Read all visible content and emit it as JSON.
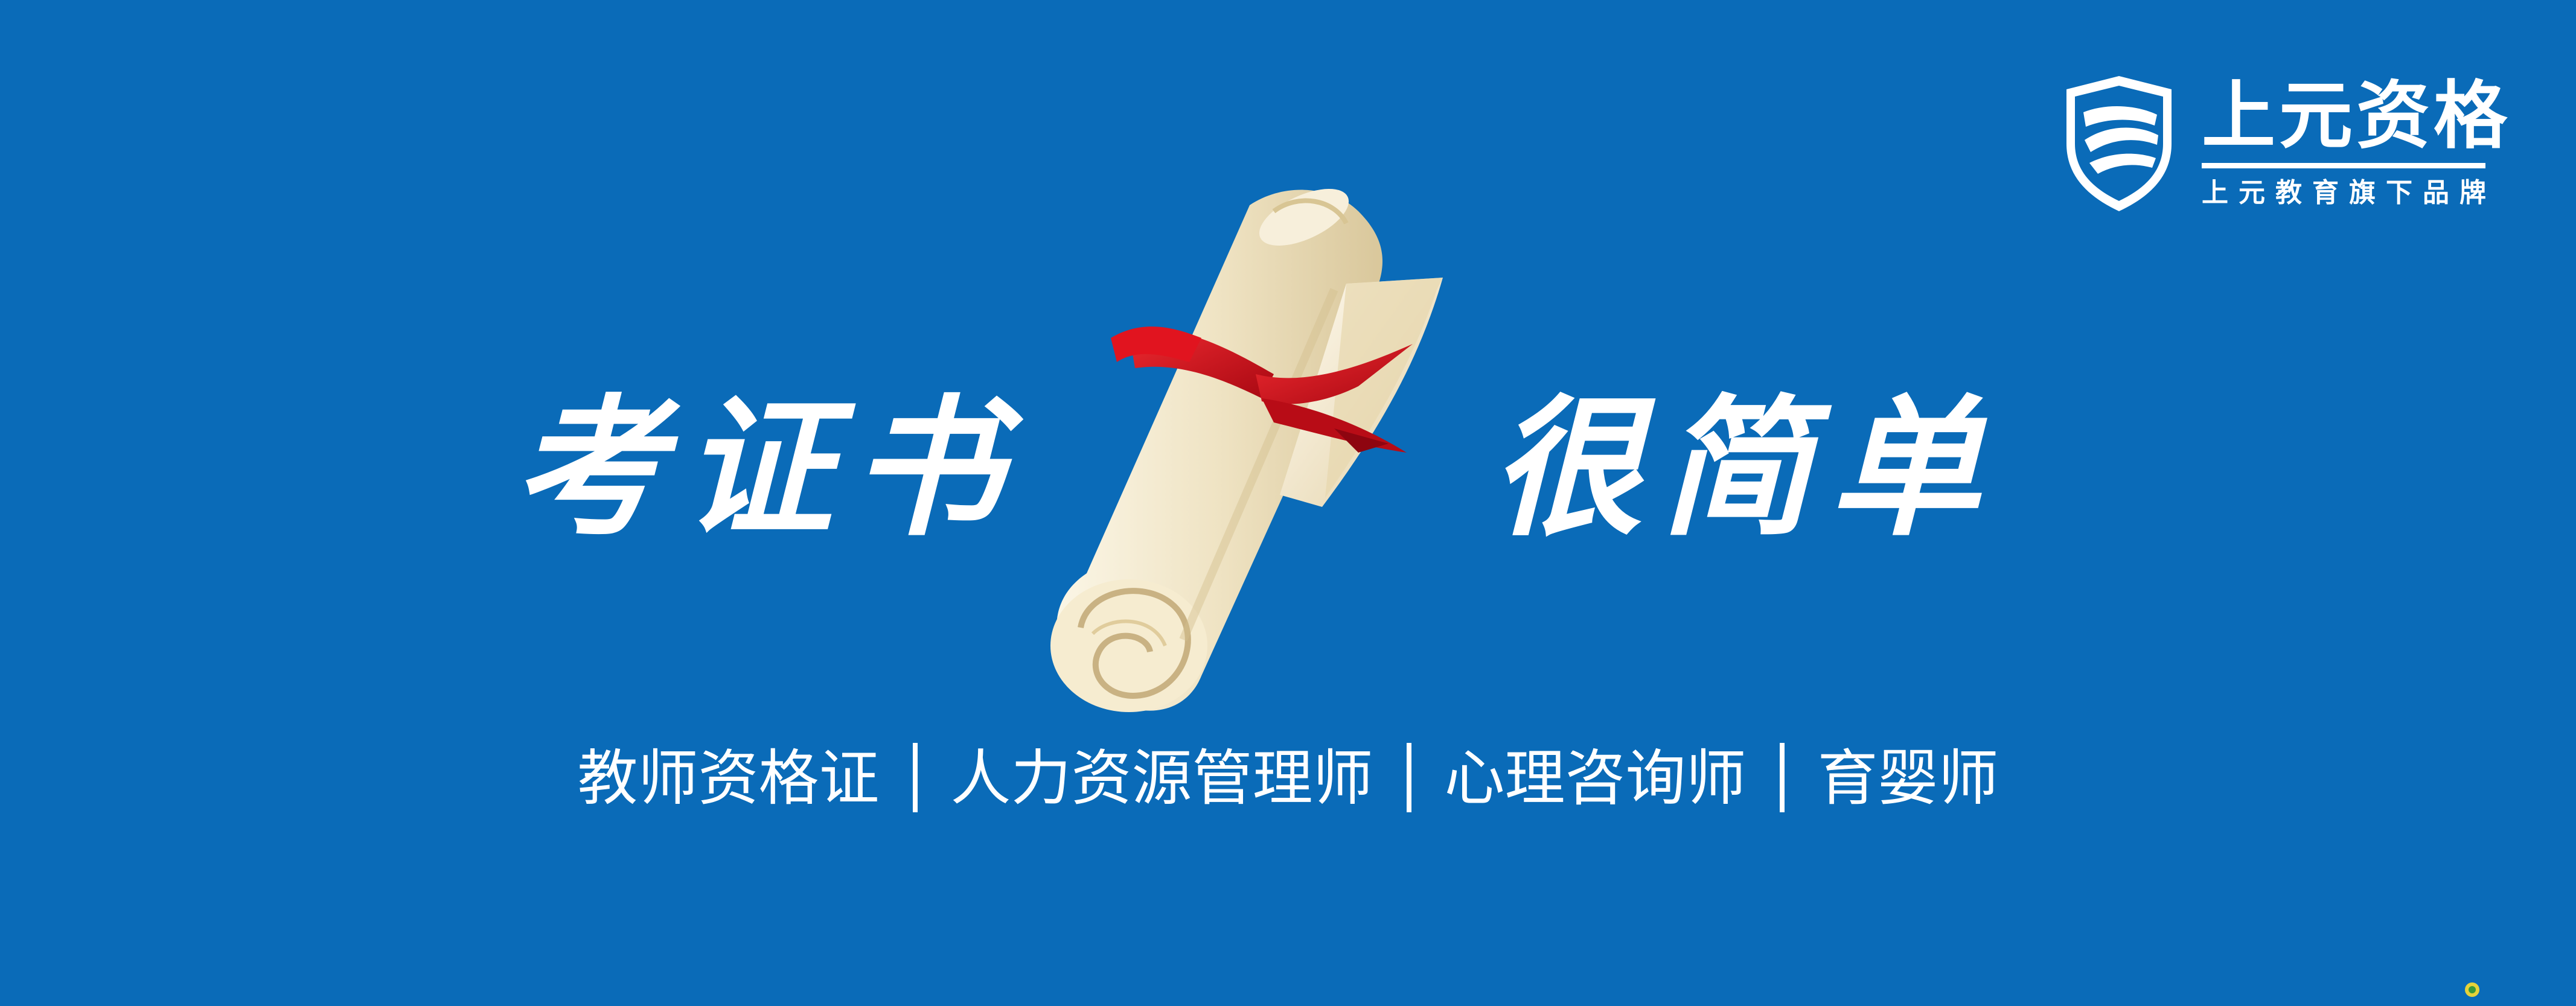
{
  "brand": {
    "name": "上元资格",
    "tagline": "上元教育旗下品牌",
    "logo_icon": "shield-logo-icon"
  },
  "headline": {
    "left": "考证书",
    "right": "很简单"
  },
  "illustration": {
    "icon": "diploma-scroll-icon",
    "ribbon_color": "#d8101c",
    "paper_color": "#efe3c3"
  },
  "subtitle": {
    "items": [
      "教师资格证",
      "人力资源管理师",
      "心理咨询师",
      "育婴师"
    ]
  },
  "colors": {
    "background": "#0a6bb8",
    "text": "#ffffff"
  }
}
